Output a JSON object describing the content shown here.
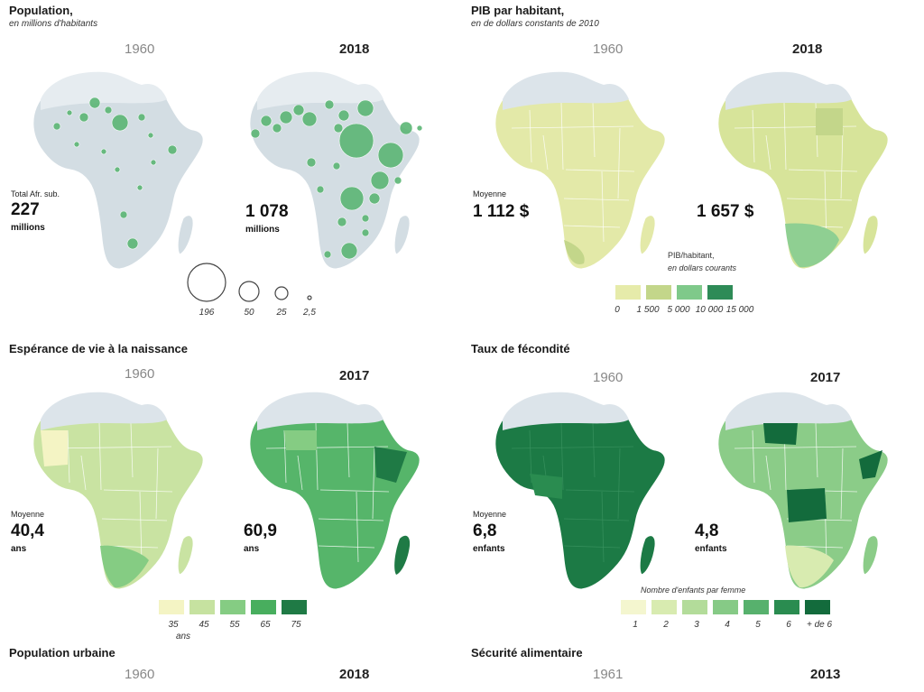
{
  "population": {
    "title": "Population,",
    "subtitle": "en millions d'habitants",
    "year_old": "1960",
    "year_new": "2018",
    "stat_label": "Total Afr. sub.",
    "value_old": "227",
    "unit_old": "millions",
    "value_new": "1 078",
    "unit_new": "millions",
    "legend": [
      "196",
      "50",
      "25",
      "2,5"
    ]
  },
  "pib": {
    "title": "PIB par habitant,",
    "subtitle": "en de dollars constants de 2010",
    "year_old": "1960",
    "year_new": "2018",
    "stat_label": "Moyenne",
    "value_old": "1 112 $",
    "value_new": "1 657 $",
    "legend_title_line1": "PIB/habitant,",
    "legend_title_line2": "en dollars courants",
    "legend": [
      "0",
      "1 500",
      "5 000",
      "10 000",
      "15 000"
    ],
    "colors": [
      "#e6ebaa",
      "#c3d68a",
      "#7fc98a",
      "#2e8b57"
    ]
  },
  "esperance": {
    "title": "Espérance de vie à la naissance",
    "year_old": "1960",
    "year_new": "2017",
    "stat_label": "Moyenne",
    "value_old": "40,4",
    "unit_old": "ans",
    "value_new": "60,9",
    "unit_new": "ans",
    "legend": [
      "35",
      "45",
      "55",
      "65",
      "75"
    ],
    "legend_sub": "ans",
    "colors": [
      "#f4f4c4",
      "#c6e2a0",
      "#85cc83",
      "#48ae5e",
      "#1f7a45"
    ]
  },
  "fecondite": {
    "title": "Taux de fécondité",
    "year_old": "1960",
    "year_new": "2017",
    "stat_label": "Moyenne",
    "value_old": "6,8",
    "unit_old": "enfants",
    "value_new": "4,8",
    "unit_new": "enfants",
    "legend_title": "Nombre d'enfants par femme",
    "legend": [
      "1",
      "2",
      "3",
      "4",
      "5",
      "6",
      "+ de 6"
    ],
    "colors": [
      "#f4f6cf",
      "#d8ebb0",
      "#b3dc9a",
      "#86ca86",
      "#57b16d",
      "#2a8c50",
      "#136b3c"
    ]
  },
  "urbaine": {
    "title": "Population urbaine",
    "year_old": "1960",
    "year_new": "2018"
  },
  "securite": {
    "title": "Sécurité alimentaire",
    "year_old": "1961",
    "year_new": "2013"
  },
  "map_colors": {
    "base": "#d3dde3",
    "bubble": "#5cb675",
    "pib_old": "#e3e9a8",
    "pib_new": "#d7e49a",
    "pib_south": "#8fcf92",
    "life_old": "#c9e3a2",
    "life_new": "#56b56a",
    "fert_old": "#1c7a45",
    "fert_new": "#8bcc88"
  }
}
